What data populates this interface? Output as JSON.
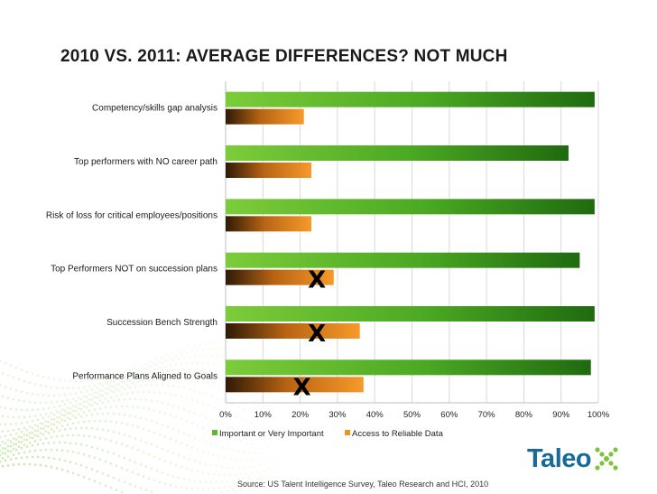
{
  "title": "2010 VS. 2011: AVERAGE DIFFERENCES?  NOT MUCH",
  "source": "Source: US Talent Intelligence Survey, Taleo Research and HCI, 2010",
  "logo": {
    "text": "Taleo"
  },
  "colors": {
    "series_important": "#5fb82a",
    "series_important_dark": "#1f6a10",
    "series_access": "#f5921f",
    "series_access_dark": "#3a2208",
    "grid": "#d9d9d9",
    "logo_blue": "#156a98",
    "logo_green": "#7fc241"
  },
  "chart_data": {
    "type": "bar",
    "orientation": "horizontal",
    "categories": [
      "Competency/skills gap analysis",
      "Top performers with NO career path",
      "Risk of loss for critical employees/positions",
      "Top Performers NOT on succession plans",
      "Succession Bench Strength",
      "Performance Plans Aligned to Goals"
    ],
    "series": [
      {
        "name": "Important or Very Important",
        "values": [
          99,
          92,
          99,
          95,
          99,
          98
        ]
      },
      {
        "name": "Access to Reliable Data",
        "values": [
          21,
          23,
          23,
          29,
          36,
          37
        ]
      }
    ],
    "x_ticks": [
      "0%",
      "10%",
      "20%",
      "30%",
      "40%",
      "50%",
      "60%",
      "70%",
      "80%",
      "90%",
      "100%"
    ],
    "xlim": [
      0,
      100
    ],
    "legend_position": "bottom",
    "annotations": [
      {
        "text": "X",
        "category_index": 3,
        "series_index": 1,
        "x_value": 24.5
      },
      {
        "text": "X",
        "category_index": 4,
        "series_index": 1,
        "x_value": 24.5
      },
      {
        "text": "X",
        "category_index": 5,
        "series_index": 1,
        "x_value": 20.5
      }
    ]
  }
}
